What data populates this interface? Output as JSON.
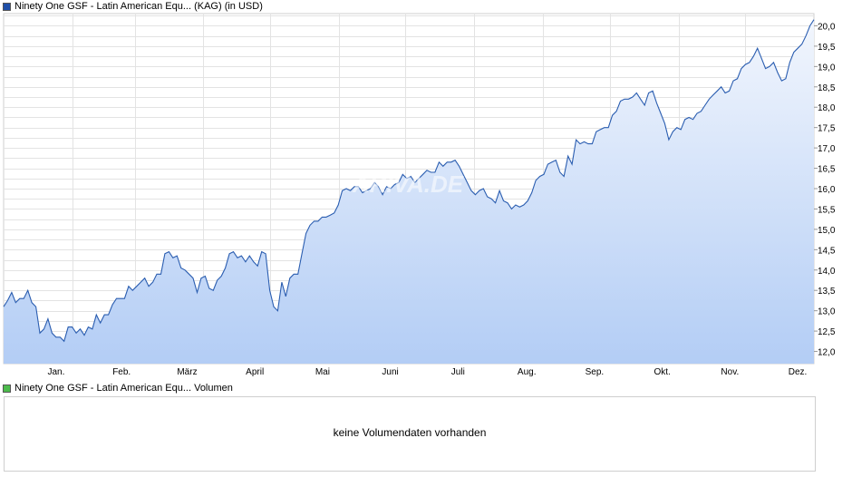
{
  "legend_price": {
    "label": "Ninety One GSF - Latin American Equ... (KAG) (in USD)",
    "color": "#1f4fa8"
  },
  "legend_volume": {
    "label": "Ninety One GSF - Latin American Equ... Volumen",
    "color": "#4cbb4c"
  },
  "watermark": "ARIVA.DE",
  "volume_panel": {
    "message": "keine Volumendaten vorhanden"
  },
  "chart_data": {
    "type": "area",
    "series": [
      {
        "values": [
          13.1,
          13.25,
          13.45,
          13.2,
          13.3,
          13.3,
          13.5,
          13.2,
          13.1,
          12.45,
          12.55,
          12.8,
          12.45,
          12.35,
          12.35,
          12.25,
          12.6,
          12.6,
          12.45,
          12.55,
          12.4,
          12.6,
          12.55,
          12.9,
          12.7,
          12.9,
          12.9,
          13.15,
          13.3,
          13.3,
          13.3,
          13.6,
          13.5,
          13.6,
          13.7,
          13.8,
          13.6,
          13.7,
          13.9,
          13.9,
          14.4,
          14.45,
          14.3,
          14.35,
          14.05,
          14.0,
          13.9,
          13.8,
          13.45,
          13.8,
          13.85,
          13.55,
          13.5,
          13.75,
          13.85,
          14.05,
          14.4,
          14.45,
          14.3,
          14.35,
          14.2,
          14.35,
          14.2,
          14.1,
          14.45,
          14.4,
          13.5,
          13.1,
          13.0,
          13.7,
          13.35,
          13.8,
          13.9,
          13.9,
          14.4,
          14.9,
          15.1,
          15.2,
          15.2,
          15.3,
          15.3,
          15.35,
          15.4,
          15.6,
          15.95,
          16.0,
          15.95,
          16.05,
          16.05,
          15.9,
          15.95,
          16.0,
          16.15,
          16.05,
          15.85,
          16.05,
          16.0,
          16.1,
          16.15,
          16.35,
          16.25,
          16.3,
          16.15,
          16.25,
          16.35,
          16.45,
          16.4,
          16.4,
          16.65,
          16.55,
          16.65,
          16.65,
          16.7,
          16.55,
          16.35,
          16.15,
          15.95,
          15.85,
          15.95,
          16.0,
          15.8,
          15.75,
          15.65,
          15.95,
          15.7,
          15.65,
          15.5,
          15.6,
          15.55,
          15.6,
          15.7,
          15.9,
          16.2,
          16.3,
          16.35,
          16.6,
          16.65,
          16.7,
          16.4,
          16.3,
          16.8,
          16.6,
          17.2,
          17.1,
          17.15,
          17.1,
          17.1,
          17.4,
          17.45,
          17.5,
          17.5,
          17.8,
          17.9,
          18.15,
          18.2,
          18.2,
          18.25,
          18.35,
          18.2,
          18.05,
          18.35,
          18.4,
          18.1,
          17.85,
          17.6,
          17.2,
          17.4,
          17.5,
          17.45,
          17.7,
          17.75,
          17.7,
          17.85,
          17.9,
          18.05,
          18.2,
          18.3,
          18.4,
          18.5,
          18.35,
          18.4,
          18.65,
          18.7,
          18.95,
          19.05,
          19.1,
          19.25,
          19.45,
          19.2,
          18.95,
          19.0,
          19.1,
          18.85,
          18.65,
          18.7,
          19.1,
          19.35,
          19.45,
          19.55,
          19.75,
          20.0,
          20.15
        ]
      }
    ],
    "x_tick_labels": [
      "Jan.",
      "Feb.",
      "März",
      "April",
      "Mai",
      "Juni",
      "Juli",
      "Aug.",
      "Sep.",
      "Okt.",
      "Nov.",
      "Dez."
    ],
    "y_tick_labels": [
      "12,0",
      "12,5",
      "13,0",
      "13,5",
      "14,0",
      "14,5",
      "15,0",
      "15,5",
      "16,0",
      "16,5",
      "17,0",
      "17,5",
      "18,0",
      "18,5",
      "19,0",
      "19,5",
      "20,0"
    ],
    "ylim": [
      11.7,
      20.3
    ],
    "grid": true,
    "line_color": "#2a5db0",
    "fill_color_top": "#f2f6fd",
    "fill_color_bottom": "#b3cdf5"
  }
}
